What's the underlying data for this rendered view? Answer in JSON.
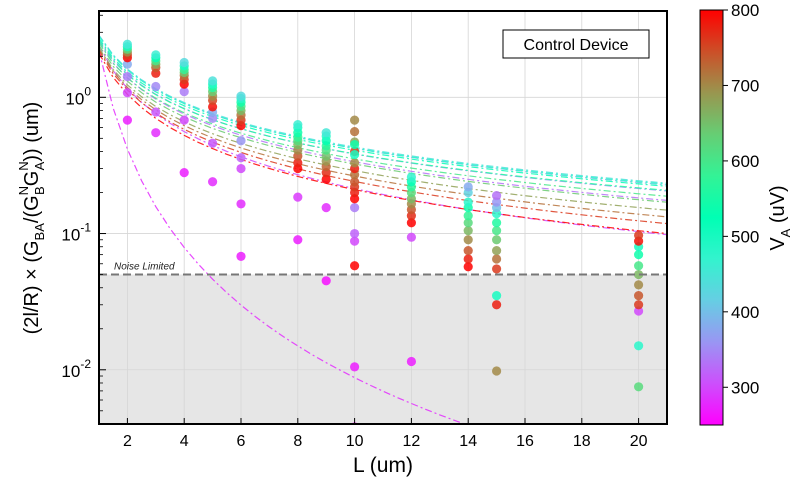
{
  "chart_data": {
    "type": "scatter",
    "title": "",
    "xlabel": "L (um)",
    "ylabel": "(2l/R) × (G",
    "ylabel_parts": {
      "sub1": "BA",
      "mid1": "/(G",
      "sup1": "N",
      "sub2": "B",
      "mid2": "G",
      "sup2": "N",
      "sub3": "A",
      "end": ")) (um)"
    },
    "x_ticks": [
      2,
      4,
      6,
      8,
      10,
      12,
      14,
      16,
      18,
      20
    ],
    "x_tick_labels": [
      "2",
      "4",
      "6",
      "8",
      "10",
      "12",
      "14",
      "16",
      "18",
      "20"
    ],
    "xlim": [
      1,
      21
    ],
    "y_scale": "log",
    "ylim": [
      0.004,
      4.3
    ],
    "y_ticks": [
      0.01,
      0.1,
      1
    ],
    "y_tick_labels": [
      {
        "base": "10",
        "exp": "-2"
      },
      {
        "base": "10",
        "exp": "-1"
      },
      {
        "base": "10",
        "exp": "0"
      }
    ],
    "grid": true,
    "legend_box": "Control Device",
    "noise_threshold": 0.05,
    "noise_label": "Noise Limited",
    "colorbar": {
      "label_base": "V",
      "label_sub": "A",
      "label_unit": " (uV)",
      "range": [
        250,
        800
      ],
      "ticks": [
        300,
        400,
        500,
        600,
        700,
        800
      ],
      "colormap": "rainbow"
    },
    "fit_lines": [
      {
        "v": 280,
        "a": 2.2,
        "b": -2.4
      },
      {
        "v": 300,
        "a": 2.4,
        "b": -1.05
      },
      {
        "v": 330,
        "a": 2.55,
        "b": -0.88
      },
      {
        "v": 360,
        "a": 2.65,
        "b": -0.84
      },
      {
        "v": 400,
        "a": 2.85,
        "b": -0.83
      },
      {
        "v": 440,
        "a": 2.85,
        "b": -0.82
      },
      {
        "v": 480,
        "a": 2.8,
        "b": -0.82
      },
      {
        "v": 520,
        "a": 2.7,
        "b": -0.82
      },
      {
        "v": 560,
        "a": 2.6,
        "b": -0.83
      },
      {
        "v": 600,
        "a": 2.5,
        "b": -0.85
      },
      {
        "v": 640,
        "a": 2.4,
        "b": -0.87
      },
      {
        "v": 680,
        "a": 2.3,
        "b": -0.9
      },
      {
        "v": 720,
        "a": 2.25,
        "b": -0.93
      },
      {
        "v": 760,
        "a": 2.2,
        "b": -0.96
      },
      {
        "v": 800,
        "a": 2.1,
        "b": -1.0
      }
    ],
    "points": [
      [
        2,
        0.68,
        270
      ],
      [
        2,
        1.08,
        300
      ],
      [
        2,
        1.42,
        340
      ],
      [
        2,
        1.75,
        380
      ],
      [
        2,
        1.95,
        800
      ],
      [
        2,
        2.05,
        760
      ],
      [
        2,
        2.15,
        700
      ],
      [
        2,
        2.25,
        620
      ],
      [
        2,
        2.35,
        500
      ],
      [
        2,
        2.45,
        450
      ],
      [
        3,
        0.55,
        280
      ],
      [
        3,
        0.78,
        310
      ],
      [
        3,
        1.2,
        350
      ],
      [
        3,
        1.5,
        780
      ],
      [
        3,
        1.65,
        740
      ],
      [
        3,
        1.75,
        680
      ],
      [
        3,
        1.85,
        600
      ],
      [
        3,
        1.95,
        520
      ],
      [
        3,
        2.05,
        460
      ],
      [
        4,
        0.28,
        270
      ],
      [
        4,
        0.68,
        300
      ],
      [
        4,
        1.1,
        340
      ],
      [
        4,
        1.25,
        800
      ],
      [
        4,
        1.35,
        760
      ],
      [
        4,
        1.45,
        720
      ],
      [
        4,
        1.52,
        650
      ],
      [
        4,
        1.6,
        580
      ],
      [
        4,
        1.7,
        500
      ],
      [
        4,
        1.8,
        430
      ],
      [
        5,
        0.24,
        280
      ],
      [
        5,
        0.46,
        310
      ],
      [
        5,
        0.7,
        350
      ],
      [
        5,
        0.78,
        380
      ],
      [
        5,
        0.85,
        790
      ],
      [
        5,
        0.95,
        750
      ],
      [
        5,
        1.02,
        700
      ],
      [
        5,
        1.1,
        640
      ],
      [
        5,
        1.18,
        560
      ],
      [
        5,
        1.25,
        490
      ],
      [
        5,
        1.32,
        440
      ],
      [
        6,
        0.068,
        270
      ],
      [
        6,
        0.165,
        280
      ],
      [
        6,
        0.3,
        300
      ],
      [
        6,
        0.36,
        320
      ],
      [
        6,
        0.48,
        360
      ],
      [
        6,
        0.62,
        800
      ],
      [
        6,
        0.68,
        760
      ],
      [
        6,
        0.74,
        720
      ],
      [
        6,
        0.8,
        660
      ],
      [
        6,
        0.86,
        600
      ],
      [
        6,
        0.92,
        540
      ],
      [
        6,
        0.98,
        480
      ],
      [
        6,
        1.02,
        430
      ],
      [
        8,
        0.09,
        270
      ],
      [
        8,
        0.185,
        290
      ],
      [
        8,
        0.3,
        800
      ],
      [
        8,
        0.33,
        780
      ],
      [
        8,
        0.37,
        740
      ],
      [
        8,
        0.41,
        700
      ],
      [
        8,
        0.45,
        660
      ],
      [
        8,
        0.48,
        620
      ],
      [
        8,
        0.51,
        580
      ],
      [
        8,
        0.55,
        540
      ],
      [
        8,
        0.6,
        500
      ],
      [
        8,
        0.63,
        460
      ],
      [
        9,
        0.045,
        260
      ],
      [
        9,
        0.155,
        280
      ],
      [
        9,
        0.25,
        800
      ],
      [
        9,
        0.28,
        770
      ],
      [
        9,
        0.31,
        730
      ],
      [
        9,
        0.34,
        690
      ],
      [
        9,
        0.37,
        650
      ],
      [
        9,
        0.41,
        610
      ],
      [
        9,
        0.44,
        570
      ],
      [
        9,
        0.48,
        530
      ],
      [
        9,
        0.52,
        490
      ],
      [
        9,
        0.55,
        450
      ],
      [
        10,
        0.0038,
        250
      ],
      [
        10,
        0.0105,
        270
      ],
      [
        10,
        0.058,
        800
      ],
      [
        10,
        0.088,
        300
      ],
      [
        10,
        0.1,
        320
      ],
      [
        10,
        0.155,
        340
      ],
      [
        10,
        0.18,
        800
      ],
      [
        10,
        0.2,
        780
      ],
      [
        10,
        0.22,
        760
      ],
      [
        10,
        0.24,
        740
      ],
      [
        10,
        0.27,
        720
      ],
      [
        10,
        0.3,
        780
      ],
      [
        10,
        0.33,
        700
      ],
      [
        10,
        0.4,
        760
      ],
      [
        10,
        0.47,
        680
      ],
      [
        10,
        0.56,
        720
      ],
      [
        10,
        0.68,
        700
      ],
      [
        10,
        0.45,
        540
      ],
      [
        10,
        0.38,
        500
      ],
      [
        12,
        0.0115,
        270
      ],
      [
        12,
        0.094,
        300
      ],
      [
        12,
        0.12,
        800
      ],
      [
        12,
        0.135,
        770
      ],
      [
        12,
        0.15,
        740
      ],
      [
        12,
        0.165,
        700
      ],
      [
        12,
        0.18,
        660
      ],
      [
        12,
        0.2,
        620
      ],
      [
        12,
        0.22,
        570
      ],
      [
        12,
        0.24,
        520
      ],
      [
        12,
        0.26,
        470
      ],
      [
        14,
        0.057,
        800
      ],
      [
        14,
        0.065,
        780
      ],
      [
        14,
        0.075,
        740
      ],
      [
        14,
        0.09,
        700
      ],
      [
        14,
        0.105,
        660
      ],
      [
        14,
        0.12,
        620
      ],
      [
        14,
        0.135,
        580
      ],
      [
        14,
        0.155,
        540
      ],
      [
        14,
        0.17,
        480
      ],
      [
        14,
        0.2,
        420
      ],
      [
        14,
        0.22,
        380
      ],
      [
        15,
        0.0098,
        700
      ],
      [
        15,
        0.03,
        780
      ],
      [
        15,
        0.035,
        500
      ],
      [
        15,
        0.055,
        760
      ],
      [
        15,
        0.065,
        720
      ],
      [
        15,
        0.075,
        680
      ],
      [
        15,
        0.09,
        640
      ],
      [
        15,
        0.105,
        600
      ],
      [
        15,
        0.12,
        560
      ],
      [
        15,
        0.14,
        480
      ],
      [
        15,
        0.155,
        400
      ],
      [
        15,
        0.17,
        360
      ],
      [
        15,
        0.19,
        330
      ],
      [
        20,
        0.0075,
        620
      ],
      [
        20,
        0.015,
        480
      ],
      [
        20,
        0.027,
        300
      ],
      [
        20,
        0.03,
        760
      ],
      [
        20,
        0.035,
        740
      ],
      [
        20,
        0.042,
        700
      ],
      [
        20,
        0.05,
        660
      ],
      [
        20,
        0.058,
        600
      ],
      [
        20,
        0.07,
        540
      ],
      [
        20,
        0.08,
        500
      ],
      [
        20,
        0.088,
        790
      ],
      [
        20,
        0.097,
        760
      ]
    ]
  }
}
